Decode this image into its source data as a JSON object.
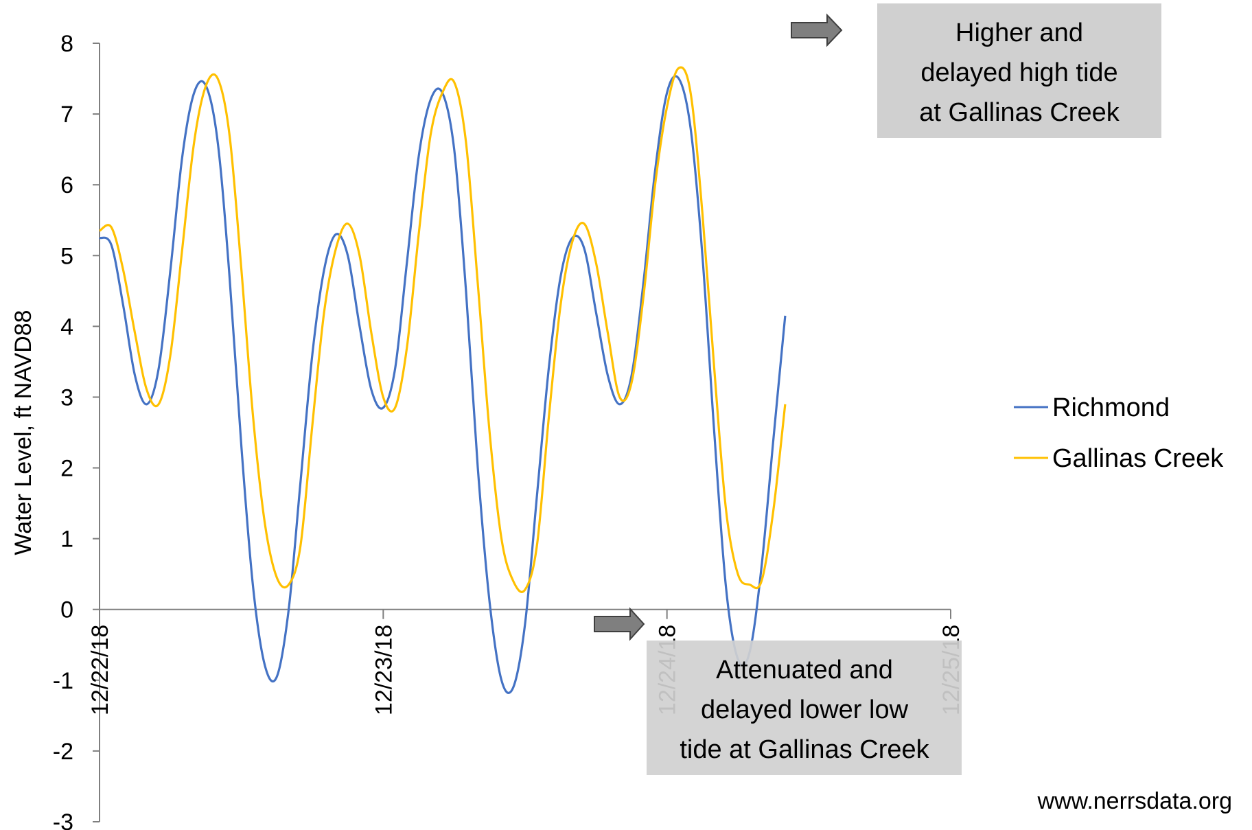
{
  "chart_data": {
    "type": "line",
    "title": "",
    "ylabel": "Water Level, ft NAVD88",
    "xlabel": "",
    "ylim": [
      -3,
      8
    ],
    "yticks": [
      -3,
      -2,
      -1,
      0,
      1,
      2,
      3,
      4,
      5,
      6,
      7,
      8
    ],
    "xlim": [
      "12/22/18 00:00",
      "12/25/18 00:00"
    ],
    "xtick_labels": [
      "12/22/18",
      "12/23/18",
      "12/24/18",
      "12/25/18"
    ],
    "grid": false,
    "legend_position": "right",
    "series": [
      {
        "name": "Richmond",
        "color": "#4472C4",
        "points": [
          [
            "12/22/18 00:00",
            5.25
          ],
          [
            "12/22/18 01:00",
            5.15
          ],
          [
            "12/22/18 02:00",
            4.3
          ],
          [
            "12/22/18 03:00",
            3.3
          ],
          [
            "12/22/18 04:00",
            2.9
          ],
          [
            "12/22/18 05:00",
            3.4
          ],
          [
            "12/22/18 06:00",
            4.8
          ],
          [
            "12/22/18 07:00",
            6.4
          ],
          [
            "12/22/18 08:00",
            7.3
          ],
          [
            "12/22/18 09:00",
            7.4
          ],
          [
            "12/22/18 10:00",
            6.6
          ],
          [
            "12/22/18 11:00",
            4.7
          ],
          [
            "12/22/18 12:00",
            2.3
          ],
          [
            "12/22/18 13:00",
            0.3
          ],
          [
            "12/22/18 14:00",
            -0.8
          ],
          [
            "12/22/18 15:00",
            -0.95
          ],
          [
            "12/22/18 16:00",
            0.0
          ],
          [
            "12/22/18 17:00",
            1.8
          ],
          [
            "12/22/18 18:00",
            3.6
          ],
          [
            "12/22/18 19:00",
            4.8
          ],
          [
            "12/22/18 20:00",
            5.3
          ],
          [
            "12/22/18 21:00",
            5.0
          ],
          [
            "12/22/18 22:00",
            4.0
          ],
          [
            "12/22/18 23:00",
            3.1
          ],
          [
            "12/23/18 00:00",
            2.85
          ],
          [
            "12/23/18 01:00",
            3.4
          ],
          [
            "12/23/18 02:00",
            4.9
          ],
          [
            "12/23/18 03:00",
            6.4
          ],
          [
            "12/23/18 04:00",
            7.2
          ],
          [
            "12/23/18 05:00",
            7.3
          ],
          [
            "12/23/18 06:00",
            6.5
          ],
          [
            "12/23/18 07:00",
            4.5
          ],
          [
            "12/23/18 08:00",
            2.0
          ],
          [
            "12/23/18 09:00",
            0.1
          ],
          [
            "12/23/18 10:00",
            -1.0
          ],
          [
            "12/23/18 11:00",
            -1.1
          ],
          [
            "12/23/18 12:00",
            -0.2
          ],
          [
            "12/23/18 13:00",
            1.6
          ],
          [
            "12/23/18 14:00",
            3.4
          ],
          [
            "12/23/18 15:00",
            4.7
          ],
          [
            "12/23/18 16:00",
            5.25
          ],
          [
            "12/23/18 17:00",
            5.1
          ],
          [
            "12/23/18 18:00",
            4.2
          ],
          [
            "12/23/18 19:00",
            3.3
          ],
          [
            "12/23/18 20:00",
            2.9
          ],
          [
            "12/23/18 21:00",
            3.3
          ],
          [
            "12/23/18 22:00",
            4.6
          ],
          [
            "12/23/18 23:00",
            6.2
          ],
          [
            "12/24/18 00:00",
            7.3
          ],
          [
            "12/24/18 01:00",
            7.5
          ],
          [
            "12/24/18 02:00",
            6.8
          ],
          [
            "12/24/18 03:00",
            5.0
          ],
          [
            "12/24/18 04:00",
            2.5
          ],
          [
            "12/24/18 05:00",
            0.3
          ],
          [
            "12/24/18 06:00",
            -0.7
          ],
          [
            "12/24/18 07:00",
            -0.6
          ],
          [
            "12/24/18 08:00",
            0.6
          ],
          [
            "12/24/18 09:00",
            2.4
          ],
          [
            "12/24/18 10:00",
            4.15
          ]
        ]
      },
      {
        "name": "Gallinas Creek",
        "color": "#FFC000",
        "points": [
          [
            "12/22/18 00:00",
            5.35
          ],
          [
            "12/22/18 01:00",
            5.4
          ],
          [
            "12/22/18 02:00",
            4.8
          ],
          [
            "12/22/18 03:00",
            3.9
          ],
          [
            "12/22/18 04:00",
            3.1
          ],
          [
            "12/22/18 05:00",
            2.9
          ],
          [
            "12/22/18 06:00",
            3.6
          ],
          [
            "12/22/18 07:00",
            5.1
          ],
          [
            "12/22/18 08:00",
            6.6
          ],
          [
            "12/22/18 09:00",
            7.4
          ],
          [
            "12/22/18 10:00",
            7.5
          ],
          [
            "12/22/18 11:00",
            6.7
          ],
          [
            "12/22/18 12:00",
            4.8
          ],
          [
            "12/22/18 13:00",
            2.7
          ],
          [
            "12/22/18 14:00",
            1.2
          ],
          [
            "12/22/18 15:00",
            0.45
          ],
          [
            "12/22/18 16:00",
            0.35
          ],
          [
            "12/22/18 17:00",
            0.9
          ],
          [
            "12/22/18 18:00",
            2.6
          ],
          [
            "12/22/18 19:00",
            4.2
          ],
          [
            "12/22/18 20:00",
            5.1
          ],
          [
            "12/22/18 21:00",
            5.45
          ],
          [
            "12/22/18 22:00",
            5.0
          ],
          [
            "12/22/18 23:00",
            3.9
          ],
          [
            "12/23/18 00:00",
            3.0
          ],
          [
            "12/23/18 01:00",
            2.85
          ],
          [
            "12/23/18 02:00",
            3.7
          ],
          [
            "12/23/18 03:00",
            5.3
          ],
          [
            "12/23/18 04:00",
            6.7
          ],
          [
            "12/23/18 05:00",
            7.3
          ],
          [
            "12/23/18 06:00",
            7.45
          ],
          [
            "12/23/18 07:00",
            6.6
          ],
          [
            "12/23/18 08:00",
            4.6
          ],
          [
            "12/23/18 09:00",
            2.5
          ],
          [
            "12/23/18 10:00",
            1.0
          ],
          [
            "12/23/18 11:00",
            0.4
          ],
          [
            "12/23/18 12:00",
            0.28
          ],
          [
            "12/23/18 13:00",
            0.9
          ],
          [
            "12/23/18 14:00",
            2.7
          ],
          [
            "12/23/18 15:00",
            4.3
          ],
          [
            "12/23/18 16:00",
            5.2
          ],
          [
            "12/23/18 17:00",
            5.45
          ],
          [
            "12/23/18 18:00",
            4.9
          ],
          [
            "12/23/18 19:00",
            3.9
          ],
          [
            "12/23/18 20:00",
            3.0
          ],
          [
            "12/23/18 21:00",
            3.2
          ],
          [
            "12/23/18 22:00",
            4.4
          ],
          [
            "12/23/18 23:00",
            6.0
          ],
          [
            "12/24/18 00:00",
            7.1
          ],
          [
            "12/24/18 01:00",
            7.65
          ],
          [
            "12/24/18 02:00",
            7.3
          ],
          [
            "12/24/18 03:00",
            5.6
          ],
          [
            "12/24/18 04:00",
            3.4
          ],
          [
            "12/24/18 05:00",
            1.4
          ],
          [
            "12/24/18 06:00",
            0.5
          ],
          [
            "12/24/18 07:00",
            0.35
          ],
          [
            "12/24/18 08:00",
            0.4
          ],
          [
            "12/24/18 09:00",
            1.4
          ],
          [
            "12/24/18 10:00",
            2.9
          ]
        ]
      }
    ],
    "annotations": [
      {
        "name": "high-tide-note",
        "lines": [
          "Higher and",
          "delayed high tide",
          "at Gallinas Creek"
        ],
        "box_color": "#D0D0D0"
      },
      {
        "name": "low-tide-note",
        "lines": [
          "Attenuated and",
          "delayed lower low",
          "tide at Gallinas Creek"
        ],
        "box_color": "#D0D0D0"
      }
    ],
    "arrow_color": "#7F7F7F"
  },
  "source": "www.nerrsdata.org"
}
